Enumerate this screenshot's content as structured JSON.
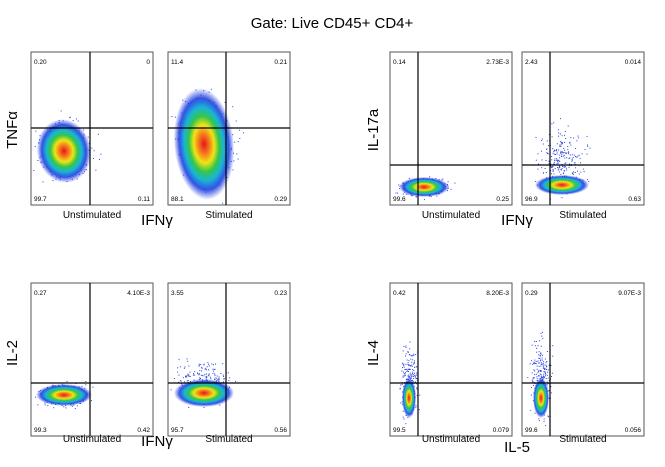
{
  "title": "Gate: Live CD45+ CD4+",
  "chart_data": [
    {
      "type": "scatter",
      "y_label": "TNFα",
      "x_label": "IFNγ",
      "panels": [
        {
          "condition": "Unstimulated",
          "quadrants": {
            "upper_left": "0.20",
            "upper_right": "0",
            "lower_left": "99.7",
            "lower_right": "0.11"
          }
        },
        {
          "condition": "Stimulated",
          "quadrants": {
            "upper_left": "11.4",
            "upper_right": "0.21",
            "lower_left": "88.1",
            "lower_right": "0.29"
          }
        }
      ]
    },
    {
      "type": "scatter",
      "y_label": "IL-17a",
      "x_label": "IFNγ",
      "panels": [
        {
          "condition": "Unstimulated",
          "quadrants": {
            "upper_left": "0.14",
            "upper_right": "2.73E-3",
            "lower_left": "99.6",
            "lower_right": "0.25"
          }
        },
        {
          "condition": "Stimulated",
          "quadrants": {
            "upper_left": "2.43",
            "upper_right": "0.014",
            "lower_left": "96.9",
            "lower_right": "0.63"
          }
        }
      ]
    },
    {
      "type": "scatter",
      "y_label": "IL-2",
      "x_label": "IFNγ",
      "panels": [
        {
          "condition": "Unstimulated",
          "quadrants": {
            "upper_left": "0.27",
            "upper_right": "4.10E-3",
            "lower_left": "99.3",
            "lower_right": "0.42"
          }
        },
        {
          "condition": "Stimulated",
          "quadrants": {
            "upper_left": "3.55",
            "upper_right": "0.23",
            "lower_left": "95.7",
            "lower_right": "0.56"
          }
        }
      ]
    },
    {
      "type": "scatter",
      "y_label": "IL-4",
      "x_label": "IL-5",
      "panels": [
        {
          "condition": "Unstimulated",
          "quadrants": {
            "upper_left": "0.42",
            "upper_right": "8.20E-3",
            "lower_left": "99.5",
            "lower_right": "0.079"
          }
        },
        {
          "condition": "Stimulated",
          "quadrants": {
            "upper_left": "0.29",
            "upper_right": "9.07E-3",
            "lower_left": "99.6",
            "lower_right": "0.056"
          }
        }
      ]
    }
  ]
}
